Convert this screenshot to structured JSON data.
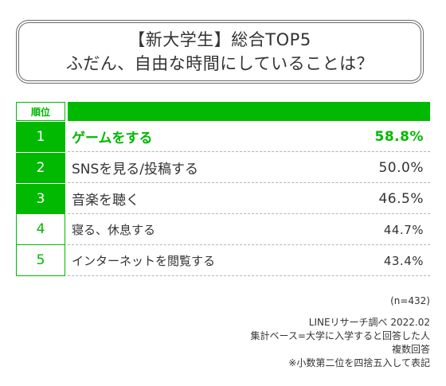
{
  "title": {
    "line1": "【新大学生】総合TOP5",
    "line2": "ふだん、自由な時間にしていることは？"
  },
  "table": {
    "rank_header": "順位"
  },
  "chart_data": {
    "type": "table",
    "title": "【新大学生】総合TOP5 ふだん、自由な時間にしていることは？",
    "rows": [
      {
        "rank": "1",
        "label": "ゲームをする",
        "value": "58.8%"
      },
      {
        "rank": "2",
        "label": "SNSを見る/投稿する",
        "value": "50.0%"
      },
      {
        "rank": "3",
        "label": "音楽を聴く",
        "value": "46.5%"
      },
      {
        "rank": "4",
        "label": "寝る、休息する",
        "value": "44.7%"
      },
      {
        "rank": "5",
        "label": "インターネットを閲覧する",
        "value": "43.4%"
      }
    ]
  },
  "notes": {
    "n": "(n=432)",
    "source": "LINEリサーチ調べ 2022.02",
    "base": "集計ベース=大学に入学すると回答した人",
    "multi": "複数回答",
    "rounding": "※小数第二位を四捨五入して表記"
  },
  "colors": {
    "accent": "#00b900",
    "text": "#333333",
    "border": "#6b6b6b"
  }
}
